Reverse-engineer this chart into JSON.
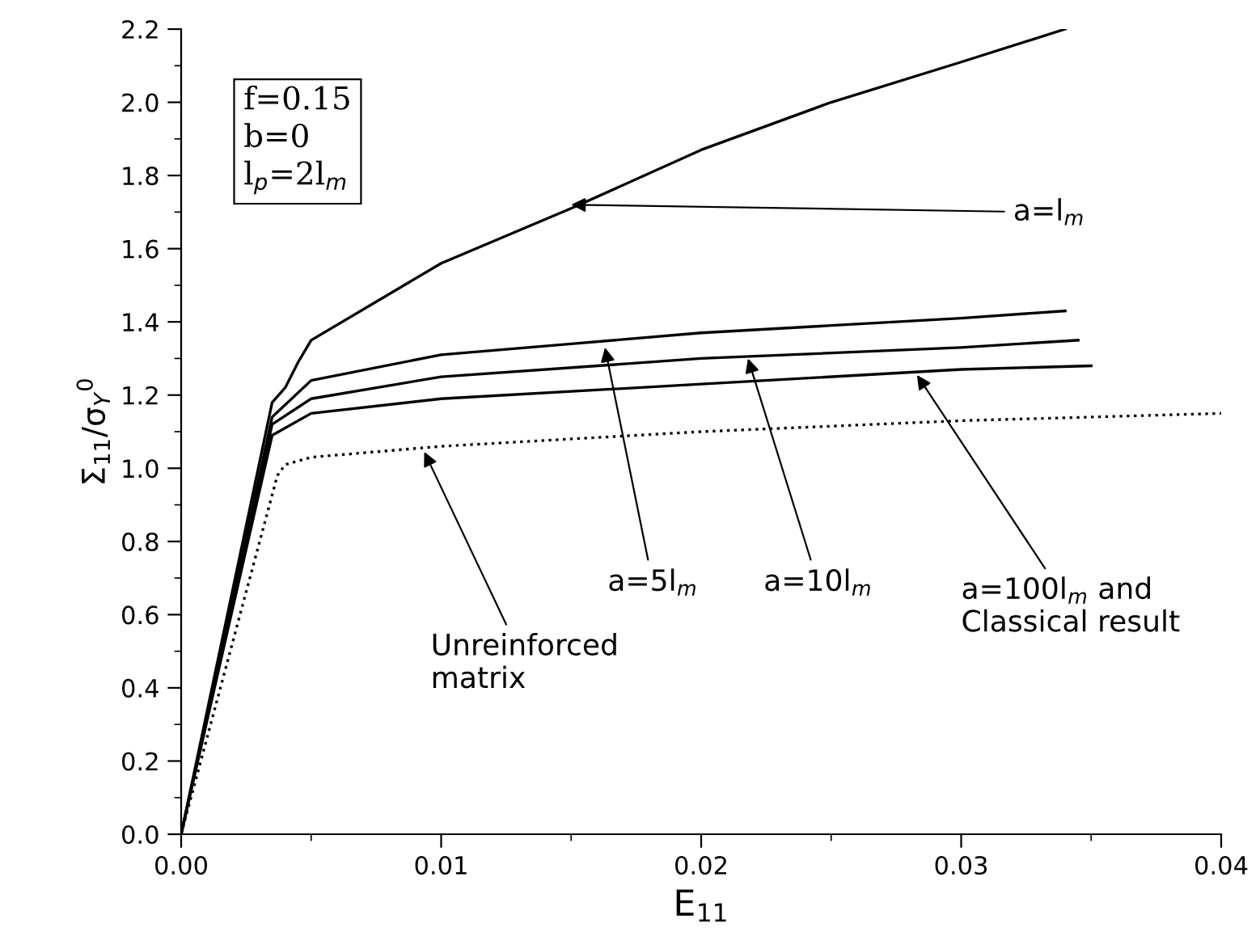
{
  "chart_data": {
    "type": "line",
    "xlabel": "E$_{11}$",
    "ylabel": "Σ$_{11}$/σ$_{Y}$$^{0}$",
    "xlim": [
      0,
      0.04
    ],
    "ylim": [
      0,
      2.2
    ],
    "xticks": [
      {
        "value": 0,
        "label": "0.00"
      },
      0.01,
      0.02,
      0.03,
      0.04
    ],
    "yticks": [
      {
        "value": 0,
        "label": "0.0"
      },
      0.2,
      0.4,
      0.6,
      0.8,
      {
        "value": 1,
        "label": "1.0"
      },
      1.2,
      1.4,
      1.6,
      1.8,
      {
        "value": 2,
        "label": "2.0"
      },
      2.2
    ],
    "grid": false,
    "legend": false,
    "marker": "none",
    "series": [
      {
        "color": "#000000",
        "line_style": "solid",
        "x": [
          0,
          0.0035,
          0.004,
          0.0045,
          0.005,
          0.01,
          0.015,
          0.02,
          0.025,
          0.03,
          0.034
        ],
        "values": [
          0,
          1.18,
          1.22,
          1.29,
          1.35,
          1.56,
          1.71,
          1.87,
          2.0,
          2.11,
          2.2
        ]
      },
      {
        "color": "#000000",
        "line_style": "solid",
        "x": [
          0,
          0.0035,
          0.005,
          0.01,
          0.015,
          0.02,
          0.025,
          0.03,
          0.034
        ],
        "values": [
          0,
          1.14,
          1.24,
          1.31,
          1.34,
          1.37,
          1.39,
          1.41,
          1.43
        ]
      },
      {
        "color": "#000000",
        "line_style": "solid",
        "x": [
          0,
          0.0035,
          0.005,
          0.01,
          0.02,
          0.03,
          0.0345
        ],
        "values": [
          0,
          1.12,
          1.19,
          1.25,
          1.3,
          1.33,
          1.35
        ]
      },
      {
        "color": "#000000",
        "line_style": "solid",
        "x": [
          0,
          0.0035,
          0.005,
          0.01,
          0.02,
          0.03,
          0.035
        ],
        "values": [
          0,
          1.09,
          1.15,
          1.19,
          1.23,
          1.27,
          1.28
        ]
      },
      {
        "color": "#000000",
        "line_style": "dotted",
        "x": [
          0,
          0.0037,
          0.004,
          0.005,
          0.01,
          0.02,
          0.03,
          0.04
        ],
        "values": [
          0,
          0.98,
          1.01,
          1.03,
          1.06,
          1.1,
          1.13,
          1.15
        ]
      }
    ],
    "annotations": [
      "f=0.15\nb=0\nl$_{p}$=2l$_{m}$",
      {
        "text": "a=l$_{m}$",
        "x": 0.015,
        "y": 1.72
      },
      {
        "text": "a=5l$_{m}$",
        "x": 0.0163,
        "y": 1.33
      },
      {
        "text": "a=10l$_{m}$",
        "x": 0.0218,
        "y": 1.3
      },
      {
        "text": "a=100l$_{m}$ and\nClassical result",
        "x": 0.0283,
        "y": 1.255
      },
      {
        "text": "Unreinforced\nmatrix",
        "x": 0.00935,
        "y": 1.045
      }
    ]
  }
}
